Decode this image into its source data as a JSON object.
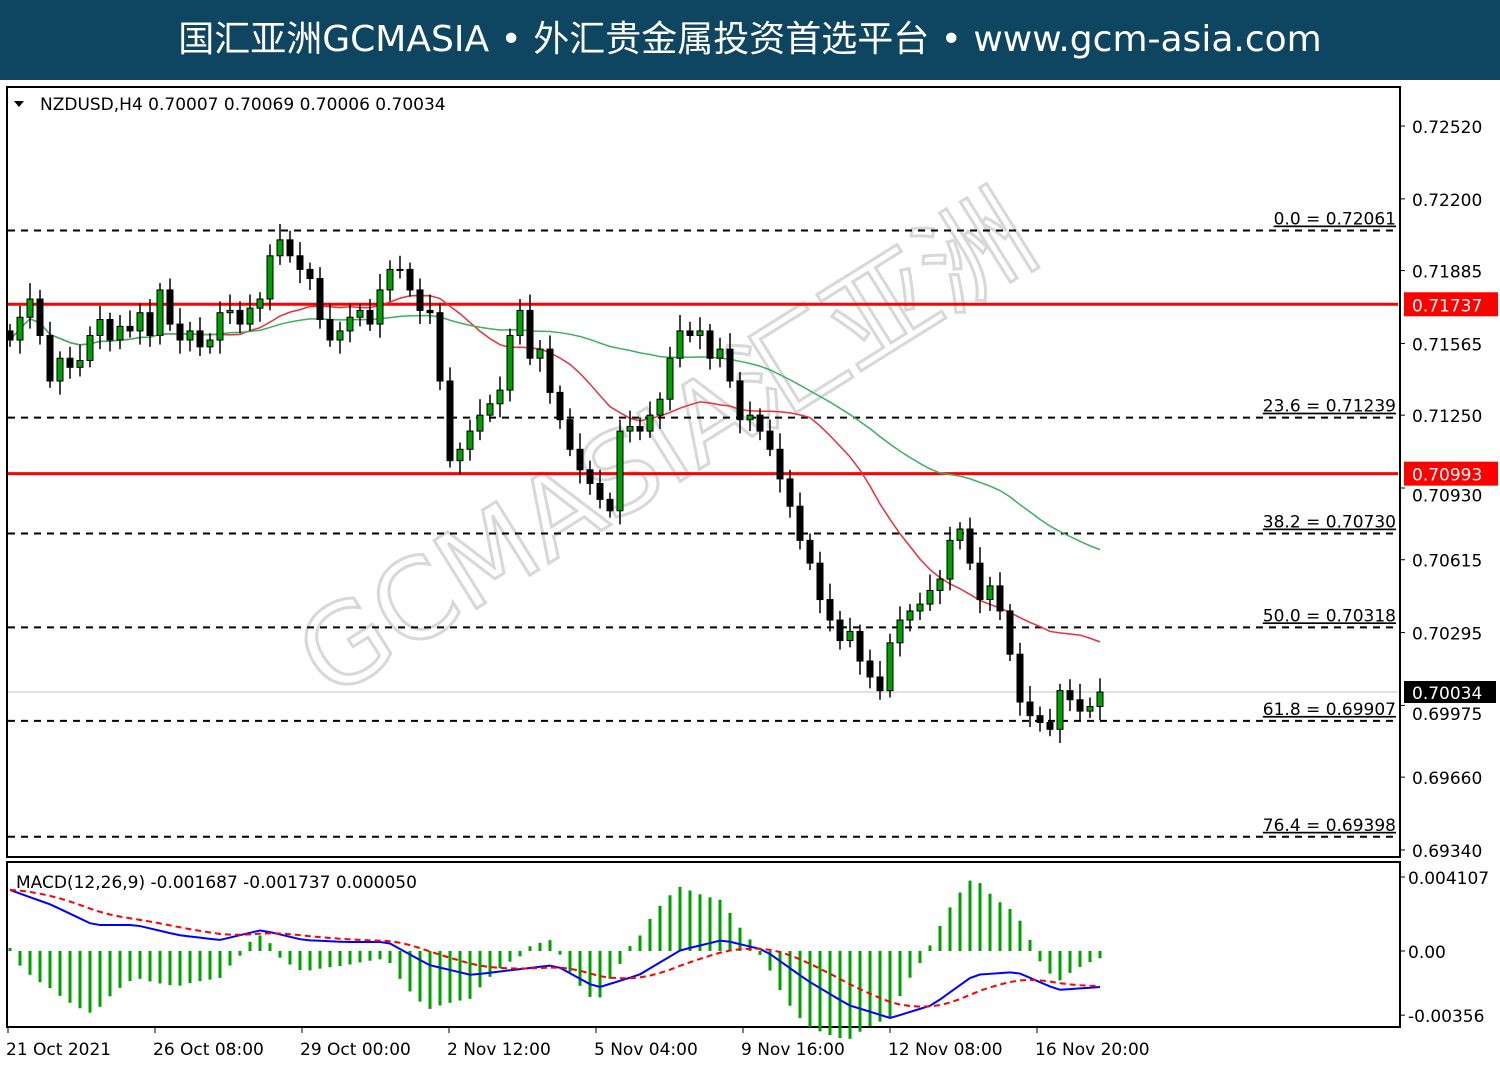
{
  "banner": {
    "text": "国汇亚洲GCMASIA • 外汇贵金属投资首选平台 • www.gcm-asia.com"
  },
  "watermark": "GCMASIA汇亚洲 GLOBAL CAPITAL MARKETS",
  "chart_data": [
    {
      "type": "candlestick",
      "title": "NZDUSD,H4  0.70007 0.70069 0.70006 0.70034",
      "ylim": [
        0.6934,
        0.7252
      ],
      "y_ticks": [
        "0.72520",
        "0.72200",
        "0.71885",
        "0.71565",
        "0.71250",
        "0.70930",
        "0.70615",
        "0.70295",
        "0.69975",
        "0.69660",
        "0.69340"
      ],
      "x_ticks": [
        "21 Oct 2021",
        "26 Oct 08:00",
        "29 Oct 00:00",
        "2 Nov 12:00",
        "5 Nov 04:00",
        "9 Nov 16:00",
        "12 Nov 08:00",
        "16 Nov 20:00"
      ],
      "close": [
        0.7158,
        0.7168,
        0.7176,
        0.716,
        0.714,
        0.715,
        0.7146,
        0.7149,
        0.716,
        0.7167,
        0.7158,
        0.7164,
        0.7162,
        0.717,
        0.716,
        0.718,
        0.7165,
        0.7158,
        0.7162,
        0.7155,
        0.7158,
        0.717,
        0.7171,
        0.7165,
        0.7172,
        0.7176,
        0.7195,
        0.7202,
        0.7195,
        0.7189,
        0.7185,
        0.7167,
        0.7158,
        0.7162,
        0.7168,
        0.7171,
        0.7165,
        0.718,
        0.7189,
        0.7189,
        0.718,
        0.7171,
        0.717,
        0.714,
        0.7105,
        0.711,
        0.7118,
        0.7125,
        0.713,
        0.7136,
        0.716,
        0.7171,
        0.715,
        0.7154,
        0.7135,
        0.7123,
        0.711,
        0.7101,
        0.7095,
        0.7088,
        0.7083,
        0.7118,
        0.712,
        0.7118,
        0.7125,
        0.7132,
        0.715,
        0.7162,
        0.716,
        0.7162,
        0.715,
        0.7154,
        0.714,
        0.7123,
        0.7125,
        0.7118,
        0.711,
        0.7097,
        0.7085,
        0.707,
        0.706,
        0.7044,
        0.7035,
        0.7026,
        0.703,
        0.7017,
        0.701,
        0.7004,
        0.7025,
        0.7035,
        0.7039,
        0.7042,
        0.7048,
        0.7053,
        0.707,
        0.7075,
        0.706,
        0.7044,
        0.705,
        0.7039,
        0.702,
        0.6999,
        0.6993,
        0.699,
        0.6987,
        0.7004,
        0.7,
        0.6995,
        0.6997,
        0.70034
      ],
      "fib_levels": [
        {
          "label": "0.0 = 0.72061",
          "value": 0.72061
        },
        {
          "label": "23.6 = 0.71239",
          "value": 0.71239
        },
        {
          "label": "38.2 = 0.70730",
          "value": 0.7073
        },
        {
          "label": "50.0 = 0.70318",
          "value": 0.70318
        },
        {
          "label": "61.8 = 0.69907",
          "value": 0.69907
        },
        {
          "label": "76.4 = 0.69398",
          "value": 0.69398
        }
      ],
      "horizontal_lines": [
        {
          "label": "0.71737",
          "value": 0.71737,
          "color": "#ff0000"
        },
        {
          "label": "0.70993",
          "value": 0.70993,
          "color": "#ff0000"
        }
      ],
      "current_price": {
        "label": "0.70034",
        "value": 0.70034
      },
      "colors": {
        "bull": "#00a000",
        "bear": "#000000",
        "ma_fast": "#e8303a",
        "ma_slow": "#3cb060"
      }
    },
    {
      "type": "line",
      "title": "MACD(12,26,9) -0.001687 -0.001737 0.000050",
      "ylim": [
        -0.00356,
        0.004107
      ],
      "y_ticks": [
        "0.004107",
        "0.00",
        "-0.00356"
      ],
      "macd_knots": [
        0.00339,
        0.00255,
        0.00144,
        0.00144,
        0.00089,
        0.00061,
        0.00116,
        0.00061,
        0.0005,
        0.0005,
        -0.00078,
        -0.00133,
        -0.00105,
        -0.00078,
        -0.00205,
        -0.00133,
        5e-05,
        0.00061,
        5e-05,
        -0.00161,
        -0.003,
        -0.00372,
        -0.003,
        -0.00133,
        -0.00116,
        -0.00216,
        -0.002
      ],
      "colors": {
        "macd": "#0000ff",
        "signal": "#ff0000",
        "histogram": "#00a000"
      }
    }
  ]
}
